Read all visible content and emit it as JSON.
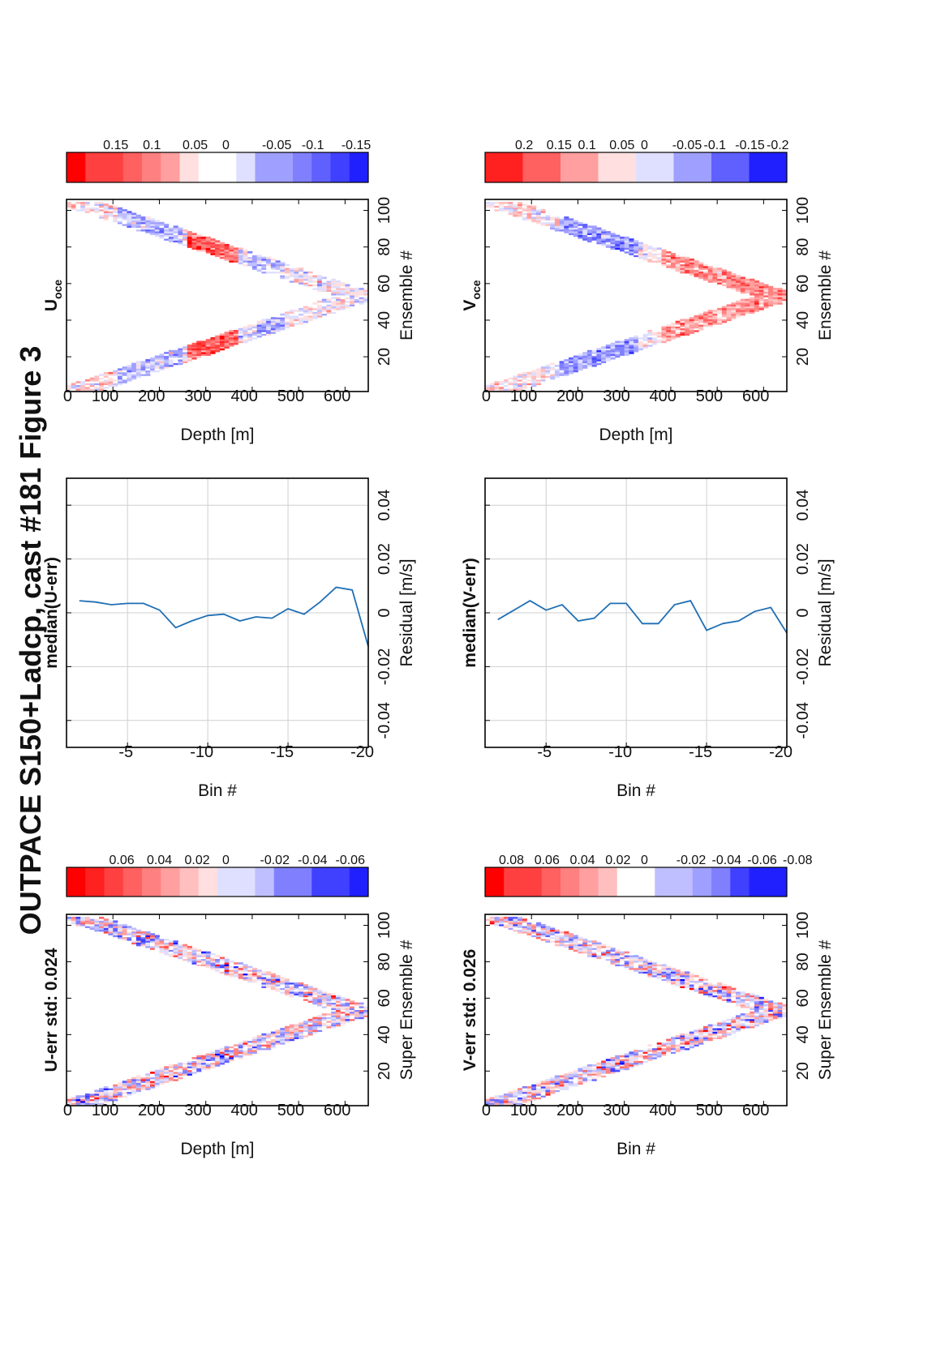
{
  "figure_title": "OUTPACE S150+Ladcp, cast #181  Figure 3",
  "chart_data": [
    {
      "id": "u_err",
      "type": "heatmap",
      "title": "U-err std: 0.024",
      "xlabel": "Super Ensemble #",
      "ylabel": "Depth [m]",
      "xlim": [
        1,
        106
      ],
      "ylim": [
        0,
        650
      ],
      "xticks": [
        20,
        40,
        60,
        80,
        100
      ],
      "yticks": [
        0,
        100,
        200,
        300,
        400,
        500,
        600
      ],
      "profile": {
        "turn_ensemble": 53,
        "max_depth": 630,
        "band_width": 95
      },
      "colorbar": {
        "ticks": [
          0.06,
          0.04,
          0.02,
          0,
          -0.02,
          -0.04,
          -0.06
        ],
        "range": [
          -0.08,
          0.08
        ]
      },
      "std": 0.024
    },
    {
      "id": "median_u_err",
      "type": "line",
      "title": "median(U-err)",
      "xlabel": "Residual [m/s]",
      "ylabel": "Bin #",
      "xlim": [
        -0.05,
        0.05
      ],
      "ylim": [
        -20,
        -2
      ],
      "xticks": [
        -0.04,
        -0.02,
        0,
        0.02,
        0.04
      ],
      "yticks": [
        -5,
        -10,
        -15,
        -20
      ],
      "grid": true,
      "series": [
        {
          "bins": [
            -2,
            -3,
            -4,
            -5,
            -6,
            -7,
            -8,
            -9,
            -10,
            -11,
            -12,
            -13,
            -14,
            -15,
            -16,
            -17,
            -18,
            -19,
            -20
          ],
          "values": [
            0.0045,
            0.004,
            0.003,
            0.0035,
            0.0035,
            0.001,
            -0.0055,
            -0.003,
            -0.001,
            -0.0005,
            -0.003,
            -0.0015,
            -0.002,
            0.0015,
            -0.0005,
            0.004,
            0.0095,
            0.0085,
            -0.0125
          ],
          "color": "#1f6fb4"
        }
      ]
    },
    {
      "id": "u_oce",
      "type": "heatmap",
      "title": "U",
      "title_subscript": "oce",
      "xlabel": "Ensemble #",
      "ylabel": "Depth [m]",
      "xlim": [
        1,
        106
      ],
      "ylim": [
        0,
        650
      ],
      "xticks": [
        20,
        40,
        60,
        80,
        100
      ],
      "yticks": [
        0,
        100,
        200,
        300,
        400,
        500,
        600
      ],
      "profile": {
        "turn_ensemble": 53,
        "max_depth": 630,
        "band_width": 95
      },
      "colorbar": {
        "ticks": [
          0.15,
          0.1,
          0.05,
          0,
          -0.05,
          -0.1,
          -0.15
        ],
        "range": [
          -0.19,
          0.19
        ]
      }
    },
    {
      "id": "v_err",
      "type": "heatmap",
      "title": "V-err std: 0.026",
      "xlabel": "Super Ensemble #",
      "ylabel": "Bin #",
      "xlim": [
        1,
        106
      ],
      "ylim": [
        0,
        650
      ],
      "xticks": [
        20,
        40,
        60,
        80,
        100
      ],
      "yticks": [
        0,
        100,
        200,
        300,
        400,
        500,
        600
      ],
      "profile": {
        "turn_ensemble": 53,
        "max_depth": 630,
        "band_width": 95
      },
      "colorbar": {
        "ticks": [
          0.08,
          0.06,
          0.04,
          0.02,
          0,
          -0.02,
          -0.04,
          -0.06,
          -0.08
        ],
        "range": [
          -0.085,
          0.085
        ]
      },
      "std": 0.026
    },
    {
      "id": "median_v_err",
      "type": "line",
      "title": "median(V-err)",
      "xlabel": "Residual [m/s]",
      "ylabel": "Bin #",
      "xlim": [
        -0.05,
        0.05
      ],
      "ylim": [
        -20,
        -2
      ],
      "xticks": [
        -0.04,
        -0.02,
        0,
        0.02,
        0.04
      ],
      "yticks": [
        -5,
        -10,
        -15,
        -20
      ],
      "grid": true,
      "series": [
        {
          "bins": [
            -2,
            -3,
            -4,
            -5,
            -6,
            -7,
            -8,
            -9,
            -10,
            -11,
            -12,
            -13,
            -14,
            -15,
            -16,
            -17,
            -18,
            -19,
            -20
          ],
          "values": [
            -0.0025,
            0.001,
            0.0045,
            0.001,
            0.003,
            -0.003,
            -0.002,
            0.0035,
            0.0035,
            -0.004,
            -0.004,
            0.003,
            0.0045,
            -0.0065,
            -0.004,
            -0.003,
            0.0005,
            0.002,
            -0.0075
          ],
          "color": "#1f6fb4"
        }
      ]
    },
    {
      "id": "v_oce",
      "type": "heatmap",
      "title": "V",
      "title_subscript": "oce",
      "xlabel": "Ensemble #",
      "ylabel": "Depth [m]",
      "xlim": [
        1,
        106
      ],
      "ylim": [
        0,
        650
      ],
      "xticks": [
        20,
        40,
        60,
        80,
        100
      ],
      "yticks": [
        0,
        100,
        200,
        300,
        400,
        500,
        600
      ],
      "profile": {
        "turn_ensemble": 53,
        "max_depth": 630,
        "band_width": 95
      },
      "colorbar": {
        "ticks": [
          0.2,
          0.15,
          0.1,
          0.05,
          0,
          -0.05,
          -0.1,
          -0.15,
          -0.2
        ],
        "range": [
          -0.24,
          0.24
        ]
      }
    }
  ]
}
